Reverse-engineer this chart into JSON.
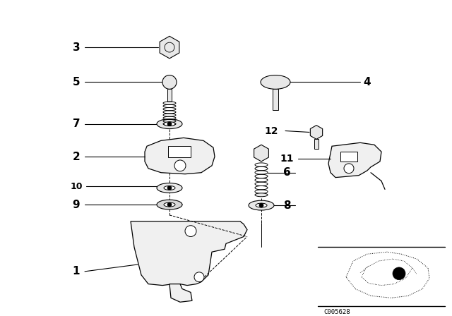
{
  "background_color": "#ffffff",
  "fig_width": 6.4,
  "fig_height": 4.48,
  "dpi": 100,
  "diagram_code": "C005628",
  "line_color": "#000000",
  "text_color": "#000000"
}
